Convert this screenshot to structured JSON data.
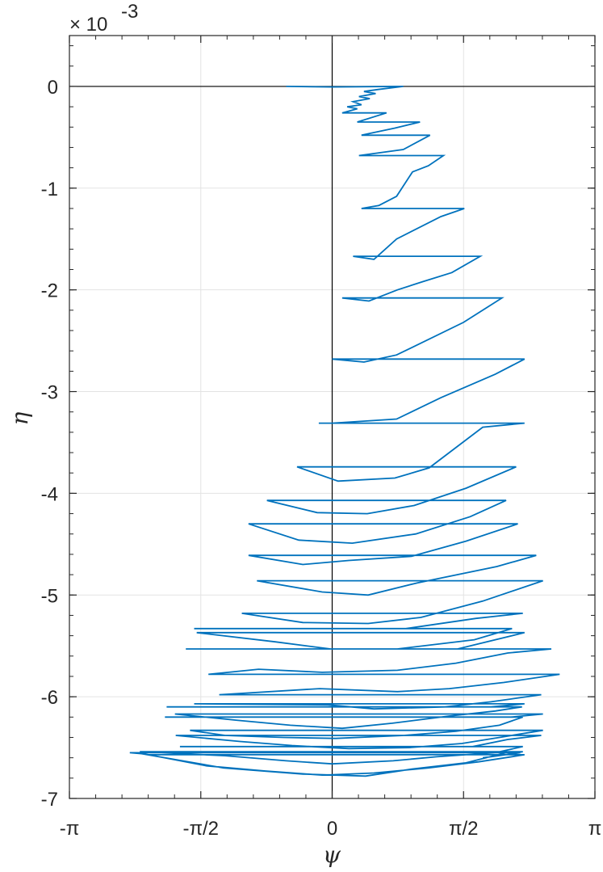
{
  "chart_data": {
    "type": "line",
    "title": "",
    "xlabel": "ψ",
    "ylabel": "η",
    "y_multiplier": {
      "base": "× 10",
      "exponent": "-3"
    },
    "xlim": [
      -3.14159,
      3.14159
    ],
    "ylim": [
      -7,
      0.5
    ],
    "grid": true,
    "x_ticks": [
      {
        "value": -3.14159,
        "label": "-π"
      },
      {
        "value": -1.5708,
        "label": "-π/2"
      },
      {
        "value": 0,
        "label": "0"
      },
      {
        "value": 1.5708,
        "label": "π/2"
      },
      {
        "value": 3.14159,
        "label": "π"
      }
    ],
    "y_ticks": [
      {
        "value": 0,
        "label": "0"
      },
      {
        "value": -1,
        "label": "-1"
      },
      {
        "value": -2,
        "label": "-2"
      },
      {
        "value": -3,
        "label": "-3"
      },
      {
        "value": -4,
        "label": "-4"
      },
      {
        "value": -5,
        "label": "-5"
      },
      {
        "value": -6,
        "label": "-6"
      },
      {
        "value": -7,
        "label": "-7"
      }
    ],
    "reference_lines": {
      "x": 0,
      "y": 0,
      "color": "#000000"
    },
    "series": [
      {
        "color": "#0072BD",
        "points": [
          [
            -0.55,
            0.0
          ],
          [
            0.0,
            -0.005
          ],
          [
            0.85,
            0.0
          ],
          [
            0.55,
            -0.03
          ],
          [
            0.38,
            -0.05
          ],
          [
            0.52,
            -0.07
          ],
          [
            0.32,
            -0.1
          ],
          [
            0.45,
            -0.12
          ],
          [
            0.25,
            -0.15
          ],
          [
            0.35,
            -0.18
          ],
          [
            0.18,
            -0.2
          ],
          [
            0.3,
            -0.22
          ],
          [
            0.12,
            -0.26
          ],
          [
            0.65,
            -0.26
          ],
          [
            0.3,
            -0.35
          ],
          [
            1.05,
            -0.35
          ],
          [
            0.75,
            -0.41
          ],
          [
            0.35,
            -0.48
          ],
          [
            1.17,
            -0.48
          ],
          [
            0.85,
            -0.62
          ],
          [
            0.32,
            -0.68
          ],
          [
            1.33,
            -0.68
          ],
          [
            1.15,
            -0.78
          ],
          [
            0.96,
            -0.84
          ],
          [
            0.77,
            -1.08
          ],
          [
            0.56,
            -1.17
          ],
          [
            0.35,
            -1.2
          ],
          [
            1.58,
            -1.2
          ],
          [
            1.3,
            -1.28
          ],
          [
            0.77,
            -1.5
          ],
          [
            0.5,
            -1.7
          ],
          [
            0.25,
            -1.67
          ],
          [
            1.77,
            -1.67
          ],
          [
            1.43,
            -1.83
          ],
          [
            1.08,
            -1.92
          ],
          [
            0.78,
            -2.0
          ],
          [
            0.44,
            -2.11
          ],
          [
            0.12,
            -2.08
          ],
          [
            2.03,
            -2.08
          ],
          [
            1.57,
            -2.32
          ],
          [
            0.77,
            -2.64
          ],
          [
            0.38,
            -2.71
          ],
          [
            0.0,
            -2.68
          ],
          [
            2.3,
            -2.68
          ],
          [
            1.95,
            -2.83
          ],
          [
            1.3,
            -3.06
          ],
          [
            0.77,
            -3.27
          ],
          [
            0.0,
            -3.31
          ],
          [
            -0.16,
            -3.31
          ],
          [
            2.3,
            -3.31
          ],
          [
            1.8,
            -3.35
          ],
          [
            1.16,
            -3.75
          ],
          [
            0.75,
            -3.85
          ],
          [
            0.07,
            -3.88
          ],
          [
            -0.42,
            -3.74
          ],
          [
            2.2,
            -3.74
          ],
          [
            1.6,
            -3.95
          ],
          [
            0.98,
            -4.12
          ],
          [
            0.42,
            -4.2
          ],
          [
            -0.18,
            -4.19
          ],
          [
            -0.78,
            -4.07
          ],
          [
            2.08,
            -4.07
          ],
          [
            1.65,
            -4.23
          ],
          [
            1.0,
            -4.4
          ],
          [
            0.24,
            -4.49
          ],
          [
            -0.4,
            -4.46
          ],
          [
            -1.0,
            -4.3
          ],
          [
            2.22,
            -4.3
          ],
          [
            1.6,
            -4.47
          ],
          [
            0.95,
            -4.62
          ],
          [
            0.2,
            -4.66
          ],
          [
            -0.35,
            -4.7
          ],
          [
            -1.0,
            -4.61
          ],
          [
            2.44,
            -4.61
          ],
          [
            1.97,
            -4.72
          ],
          [
            1.02,
            -4.88
          ],
          [
            0.43,
            -5.0
          ],
          [
            -0.12,
            -4.97
          ],
          [
            -0.9,
            -4.86
          ],
          [
            2.52,
            -4.86
          ],
          [
            1.8,
            -5.06
          ],
          [
            1.06,
            -5.22
          ],
          [
            0.43,
            -5.28
          ],
          [
            -0.35,
            -5.27
          ],
          [
            -1.08,
            -5.18
          ],
          [
            2.28,
            -5.18
          ],
          [
            1.72,
            -5.23
          ],
          [
            0.88,
            -5.33
          ],
          [
            -1.65,
            -5.33
          ],
          [
            2.15,
            -5.33
          ],
          [
            1.7,
            -5.44
          ],
          [
            0.78,
            -5.53
          ],
          [
            -0.02,
            -5.53
          ],
          [
            -0.68,
            -5.46
          ],
          [
            -1.62,
            -5.37
          ],
          [
            2.3,
            -5.37
          ],
          [
            1.5,
            -5.53
          ],
          [
            -1.75,
            -5.53
          ],
          [
            2.62,
            -5.53
          ],
          [
            2.1,
            -5.57
          ],
          [
            1.48,
            -5.67
          ],
          [
            0.78,
            -5.74
          ],
          [
            -0.12,
            -5.76
          ],
          [
            -0.88,
            -5.73
          ],
          [
            -1.48,
            -5.78
          ],
          [
            2.72,
            -5.78
          ],
          [
            2.05,
            -5.86
          ],
          [
            1.4,
            -5.92
          ],
          [
            0.78,
            -5.95
          ],
          [
            -0.15,
            -5.92
          ],
          [
            -1.35,
            -5.98
          ],
          [
            2.5,
            -5.98
          ],
          [
            1.9,
            -6.05
          ],
          [
            1.35,
            -6.1
          ],
          [
            0.5,
            -6.12
          ],
          [
            -0.05,
            -6.08
          ],
          [
            -1.65,
            -6.07
          ],
          [
            2.3,
            -6.07
          ],
          [
            1.9,
            -6.1
          ],
          [
            -1.98,
            -6.1
          ],
          [
            2.27,
            -6.1
          ],
          [
            1.95,
            -6.14
          ],
          [
            1.4,
            -6.19
          ],
          [
            0.72,
            -6.26
          ],
          [
            0.12,
            -6.31
          ],
          [
            -0.5,
            -6.28
          ],
          [
            -1.15,
            -6.23
          ],
          [
            -1.88,
            -6.17
          ],
          [
            2.52,
            -6.17
          ],
          [
            2.14,
            -6.2
          ],
          [
            -2.0,
            -6.2
          ],
          [
            2.28,
            -6.2
          ],
          [
            2.0,
            -6.28
          ],
          [
            1.48,
            -6.34
          ],
          [
            0.86,
            -6.38
          ],
          [
            0.04,
            -6.41
          ],
          [
            -0.58,
            -6.4
          ],
          [
            -1.28,
            -6.38
          ],
          [
            -1.7,
            -6.33
          ],
          [
            2.52,
            -6.33
          ],
          [
            2.0,
            -6.4
          ],
          [
            1.55,
            -6.46
          ],
          [
            0.92,
            -6.5
          ],
          [
            0.2,
            -6.51
          ],
          [
            -0.48,
            -6.48
          ],
          [
            -1.1,
            -6.44
          ],
          [
            -1.87,
            -6.38
          ],
          [
            2.5,
            -6.38
          ],
          [
            2.1,
            -6.42
          ],
          [
            1.68,
            -6.49
          ],
          [
            -1.82,
            -6.49
          ],
          [
            2.28,
            -6.49
          ],
          [
            1.95,
            -6.55
          ],
          [
            1.25,
            -6.59
          ],
          [
            0.73,
            -6.63
          ],
          [
            0.0,
            -6.66
          ],
          [
            -0.55,
            -6.63
          ],
          [
            -1.28,
            -6.58
          ],
          [
            -2.3,
            -6.54
          ],
          [
            2.28,
            -6.54
          ],
          [
            2.07,
            -6.57
          ],
          [
            -1.7,
            -6.57
          ],
          [
            -2.2,
            -6.57
          ],
          [
            2.3,
            -6.57
          ],
          [
            1.75,
            -6.64
          ],
          [
            1.15,
            -6.7
          ],
          [
            0.5,
            -6.75
          ],
          [
            -0.12,
            -6.77
          ],
          [
            -0.8,
            -6.73
          ],
          [
            -1.5,
            -6.68
          ],
          [
            -2.32,
            -6.55
          ],
          [
            2.08,
            -6.55
          ],
          [
            1.6,
            -6.65
          ],
          [
            0.96,
            -6.71
          ],
          [
            0.4,
            -6.78
          ],
          [
            -0.35,
            -6.76
          ],
          [
            -1.3,
            -6.7
          ],
          [
            -2.28,
            -6.56
          ],
          [
            -2.42,
            -6.55
          ],
          [
            2.25,
            -6.55
          ],
          [
            1.8,
            -6.6
          ]
        ]
      }
    ]
  }
}
